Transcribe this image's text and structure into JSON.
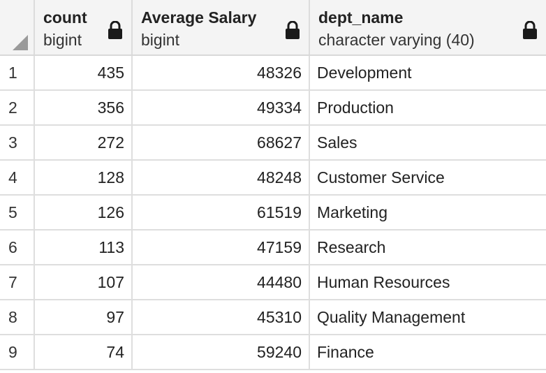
{
  "columns": [
    {
      "name": "count",
      "type": "bigint"
    },
    {
      "name": "Average Salary",
      "type": "bigint"
    },
    {
      "name": "dept_name",
      "type": "character varying (40)"
    }
  ],
  "rows": [
    {
      "n": "1",
      "count": "435",
      "salary": "48326",
      "dept": "Development"
    },
    {
      "n": "2",
      "count": "356",
      "salary": "49334",
      "dept": "Production"
    },
    {
      "n": "3",
      "count": "272",
      "salary": "68627",
      "dept": "Sales"
    },
    {
      "n": "4",
      "count": "128",
      "salary": "48248",
      "dept": "Customer Service"
    },
    {
      "n": "5",
      "count": "126",
      "salary": "61519",
      "dept": "Marketing"
    },
    {
      "n": "6",
      "count": "113",
      "salary": "47159",
      "dept": "Research"
    },
    {
      "n": "7",
      "count": "107",
      "salary": "44480",
      "dept": "Human Resources"
    },
    {
      "n": "8",
      "count": "97",
      "salary": "45310",
      "dept": "Quality Management"
    },
    {
      "n": "9",
      "count": "74",
      "salary": "59240",
      "dept": "Finance"
    }
  ],
  "icons": {
    "lock": "lock-icon",
    "corner": "select-all-corner-icon"
  }
}
